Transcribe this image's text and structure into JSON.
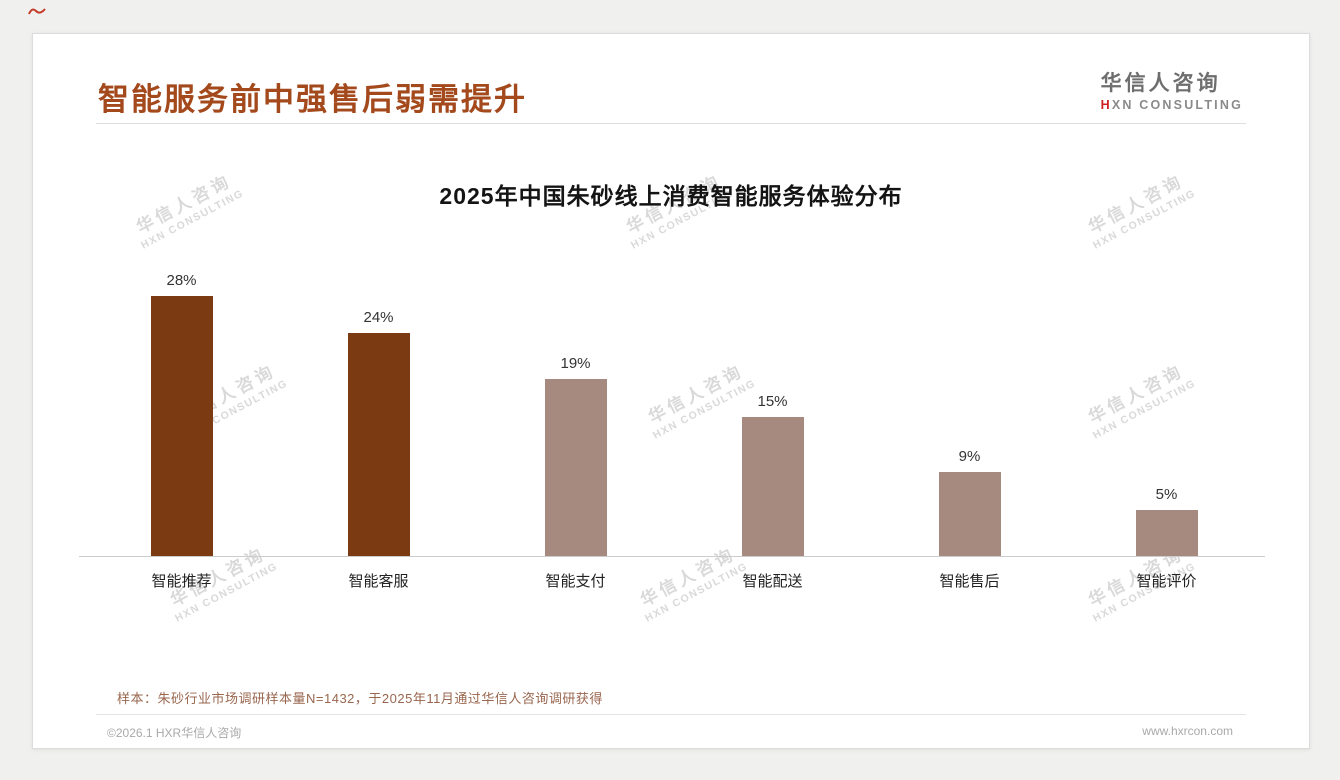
{
  "header": {
    "title": "智能服务前中强售后弱需提升",
    "logo_cn": "华信人咨询",
    "logo_en_first": "H",
    "logo_en_rest": "XN CONSULTING"
  },
  "watermark": {
    "cn": "华信人咨询",
    "en": "HXN CONSULTING"
  },
  "chart_data": {
    "type": "bar",
    "title": "2025年中国朱砂线上消费智能服务体验分布",
    "categories": [
      "智能推荐",
      "智能客服",
      "智能支付",
      "智能配送",
      "智能售后",
      "智能评价"
    ],
    "values": [
      28,
      24,
      19,
      15,
      9,
      5
    ],
    "value_labels": [
      "28%",
      "24%",
      "19%",
      "15%",
      "9%",
      "5%"
    ],
    "bar_colors": [
      "#7c3a12",
      "#7c3a12",
      "#a68a7f",
      "#a68a7f",
      "#a68a7f",
      "#a68a7f"
    ],
    "ylim": [
      0,
      30
    ],
    "xlabel": "",
    "ylabel": "",
    "grid": false,
    "legend": false
  },
  "footnote": "样本：朱砂行业市场调研样本量N=1432，于2025年11月通过华信人咨询调研获得",
  "footer": {
    "left": "©2026.1 HXR华信人咨询",
    "right": "www.hxrcon.com"
  }
}
